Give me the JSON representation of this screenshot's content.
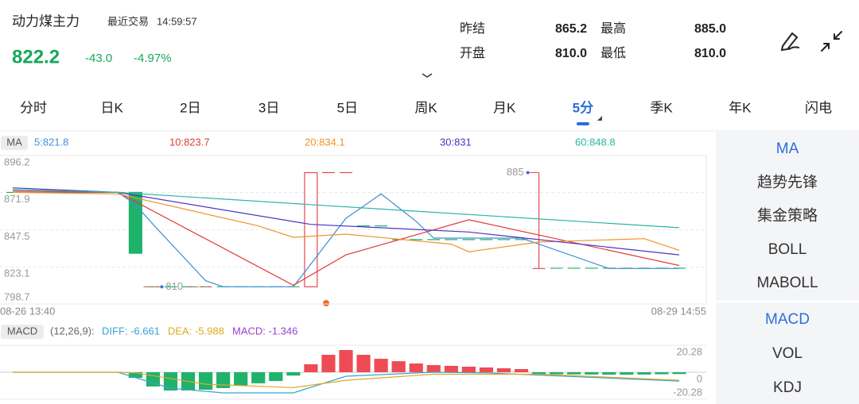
{
  "header": {
    "name": "动力煤主力",
    "time_label": "最近交易",
    "time": "14:59:57",
    "price": "822.2",
    "change": "-43.0",
    "change_pct": "-4.97%",
    "stats": [
      {
        "label": "昨结",
        "value": "865.2"
      },
      {
        "label": "最高",
        "value": "885.0"
      },
      {
        "label": "开盘",
        "value": "810.0"
      },
      {
        "label": "最低",
        "value": "810.0"
      }
    ]
  },
  "tabs": [
    {
      "label": "分时"
    },
    {
      "label": "日K"
    },
    {
      "label": "2日"
    },
    {
      "label": "3日"
    },
    {
      "label": "5日"
    },
    {
      "label": "周K"
    },
    {
      "label": "月K"
    },
    {
      "label": "5分",
      "active": true
    },
    {
      "label": "季K"
    },
    {
      "label": "年K"
    },
    {
      "label": "闪电"
    }
  ],
  "side_menu": {
    "main": [
      {
        "label": "MA",
        "active": true
      },
      {
        "label": "趋势先锋"
      },
      {
        "label": "集金策略"
      },
      {
        "label": "BOLL"
      },
      {
        "label": "MABOLL"
      }
    ],
    "sub": [
      {
        "label": "MACD",
        "active": true
      },
      {
        "label": "VOL"
      },
      {
        "label": "KDJ"
      }
    ]
  },
  "chart_data": [
    {
      "type": "candlestick",
      "indicator": "MA",
      "ylim": [
        798.7,
        896.2
      ],
      "yticks": [
        896.2,
        871.9,
        847.5,
        823.1,
        798.7
      ],
      "grid": true,
      "xlabels": [
        "08-26 13:40",
        "08-29 14:55"
      ],
      "up_color": "#e8474e",
      "down_color": "#1fb26b",
      "candles": {
        "open": [
          872,
          872,
          872,
          872,
          872,
          872,
          872,
          872,
          810,
          810,
          810,
          810,
          810,
          810,
          810,
          810,
          810,
          810,
          885,
          885,
          850,
          850,
          841,
          841,
          841,
          841,
          841,
          841,
          841,
          841,
          822,
          822.2,
          822.2,
          822.2,
          822.2,
          822.2,
          822.2,
          822.2,
          822.2
        ],
        "high": [
          872,
          872,
          872,
          872,
          872,
          872,
          872,
          872,
          810,
          810,
          810,
          810,
          810,
          810,
          810,
          810,
          810,
          885,
          885,
          885,
          850,
          850,
          841,
          841,
          841,
          841,
          841,
          841,
          841,
          841,
          885,
          822.2,
          822.2,
          822.2,
          822.2,
          822.2,
          822.2,
          822.2,
          822.2
        ],
        "low": [
          872,
          872,
          872,
          872,
          872,
          872,
          872,
          832,
          810,
          810,
          810,
          810,
          810,
          810,
          810,
          810,
          810,
          810,
          885,
          885,
          850,
          850,
          841,
          841,
          841,
          841,
          841,
          841,
          841,
          841,
          822,
          822.2,
          822.2,
          822.2,
          822.2,
          822.2,
          822.2,
          822.2,
          822.2
        ],
        "close": [
          872,
          872,
          872,
          872,
          872,
          872,
          872,
          832,
          810,
          810,
          810,
          810,
          810,
          810,
          810,
          810,
          810,
          885,
          885,
          885,
          850,
          850,
          841,
          841,
          841,
          841,
          841,
          841,
          841,
          841,
          822,
          822.2,
          822.2,
          822.2,
          822.2,
          822.2,
          822.2,
          822.2,
          822.2
        ],
        "up": [
          false,
          false,
          false,
          false,
          false,
          false,
          false,
          false,
          false,
          false,
          false,
          false,
          false,
          false,
          false,
          false,
          false,
          true,
          true,
          true,
          false,
          false,
          false,
          false,
          false,
          false,
          false,
          false,
          false,
          false,
          true,
          false,
          false,
          false,
          false,
          false,
          false,
          false,
          false
        ]
      },
      "max_marker": {
        "index": 30,
        "value": 885
      },
      "min_marker": {
        "index": 8,
        "value": 810
      },
      "series": [
        {
          "name": "5:821.8",
          "color": "#3d8fd8",
          "x": [
            0,
            6,
            7,
            8,
            11,
            12,
            16,
            17,
            18,
            19,
            20,
            21,
            22,
            23,
            24,
            29,
            30,
            34,
            38
          ],
          "values": [
            872,
            872,
            864,
            851,
            814,
            810,
            810,
            825,
            840,
            855,
            863,
            871,
            862,
            853,
            842,
            842,
            838,
            822,
            822
          ]
        },
        {
          "name": "10:823.7",
          "color": "#e03a3a",
          "x": [
            0,
            6,
            16,
            19,
            26,
            38
          ],
          "values": [
            873,
            872,
            811,
            831,
            854,
            824
          ]
        },
        {
          "name": "20:834.1",
          "color": "#f0922b",
          "x": [
            0,
            6,
            14,
            16,
            19,
            25,
            26,
            30,
            36,
            38
          ],
          "values": [
            872,
            871,
            850,
            842.5,
            844.6,
            838,
            833,
            839.4,
            841.6,
            834
          ]
        },
        {
          "name": "30:831",
          "color": "#4f33c4",
          "x": [
            0,
            6,
            17,
            26,
            38
          ],
          "values": [
            875,
            872,
            851,
            846,
            831
          ]
        },
        {
          "name": "60:848.8",
          "color": "#2bb5a5",
          "x": [
            0,
            6,
            17,
            38
          ],
          "values": [
            874,
            872,
            864,
            848.8
          ]
        }
      ]
    },
    {
      "type": "macd",
      "name": "MACD",
      "params": "(12,26,9):",
      "ylim": [
        -20.28,
        20.28
      ],
      "yticks": [
        20.28,
        0,
        -20.28
      ],
      "up_color": "#ef4b55",
      "down_color": "#1fb26b",
      "histogram": {
        "name": "MACD: -1.346",
        "color": "#9b3fcf",
        "values": [
          0,
          0,
          0,
          0,
          0,
          0,
          0,
          -4.2,
          -10.7,
          -13.7,
          -13.7,
          -13.1,
          -11.9,
          -10.1,
          -8.3,
          -6.6,
          -2.5,
          6.0,
          13.1,
          16.7,
          13.1,
          10.1,
          8.3,
          6.6,
          5.4,
          4.8,
          4.2,
          3.6,
          3.0,
          2.4,
          -1.8,
          -1.5,
          -1.6,
          -1.7,
          -1.8,
          -1.8,
          -1.7,
          -1.5,
          -1.346
        ]
      },
      "lines": [
        {
          "name": "DIFF: -6.661",
          "color": "#39a2cf",
          "x": [
            0,
            6,
            9,
            12,
            16,
            19,
            24,
            27,
            38
          ],
          "values": [
            0,
            0,
            -12,
            -15.5,
            -15.5,
            -3,
            0,
            -0.5,
            -6.661
          ]
        },
        {
          "name": "DEA: -5.988",
          "color": "#e0a825",
          "x": [
            0,
            6,
            7,
            11,
            16,
            19,
            24,
            30,
            38
          ],
          "values": [
            0,
            0,
            -0.5,
            -9,
            -11.5,
            -6,
            -1.5,
            -1.5,
            -5.988
          ]
        }
      ]
    }
  ]
}
